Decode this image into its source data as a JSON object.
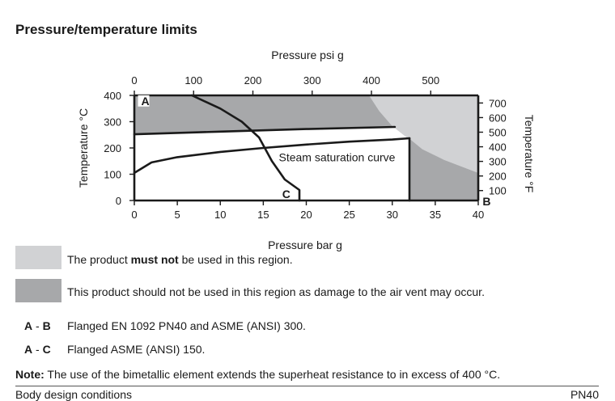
{
  "page": {
    "title": "Pressure/temperature limits"
  },
  "chart_data": {
    "type": "area",
    "x_bottom": {
      "label": "Pressure bar g",
      "range": [
        0,
        40
      ],
      "ticks": [
        0,
        5,
        10,
        15,
        20,
        25,
        30,
        35,
        40
      ]
    },
    "x_top": {
      "label": "Pressure psi g",
      "ticks": [
        0,
        100,
        200,
        300,
        400,
        500
      ]
    },
    "y_left": {
      "label": "Temperature °C",
      "range": [
        0,
        400
      ],
      "ticks": [
        0,
        100,
        200,
        300,
        400
      ]
    },
    "y_right": {
      "label": "Temperature °F",
      "ticks": [
        100,
        200,
        300,
        400,
        500,
        600,
        700
      ]
    },
    "regions": [
      {
        "key": "must_not",
        "color": "#d1d2d4",
        "points": [
          [
            27.3,
            400
          ],
          [
            40,
            400
          ],
          [
            40,
            105
          ],
          [
            34,
            180
          ],
          [
            30,
            283
          ],
          [
            28.5,
            340
          ]
        ]
      },
      {
        "key": "should_not",
        "color": "#a7a8aa",
        "points_upper": [
          [
            0,
            400
          ],
          [
            27.3,
            400
          ],
          [
            28.5,
            340
          ],
          [
            30,
            283
          ],
          [
            30.2,
            280
          ],
          [
            0,
            252
          ]
        ],
        "points_lower": [
          [
            32,
            235
          ],
          [
            33.5,
            195
          ],
          [
            36,
            155
          ],
          [
            40,
            105
          ],
          [
            40,
            0
          ],
          [
            32,
            0
          ]
        ]
      }
    ],
    "curves": [
      {
        "name": "Steam saturation curve",
        "points": [
          [
            0,
            105
          ],
          [
            2,
            145
          ],
          [
            5,
            165
          ],
          [
            10,
            185
          ],
          [
            15,
            200
          ],
          [
            20,
            213
          ],
          [
            25,
            224
          ],
          [
            30,
            232
          ],
          [
            32,
            237
          ]
        ]
      },
      {
        "name": "limit_AB_upper",
        "points": [
          [
            0,
            252
          ],
          [
            10,
            262
          ],
          [
            20,
            272
          ],
          [
            30.3,
            280
          ]
        ]
      },
      {
        "name": "limit_AC",
        "points": [
          [
            6.7,
            400
          ],
          [
            10,
            350
          ],
          [
            12.5,
            300
          ],
          [
            14.5,
            240
          ],
          [
            16,
            150
          ],
          [
            17.5,
            80
          ],
          [
            19.2,
            40
          ],
          [
            19.2,
            0
          ]
        ]
      },
      {
        "name": "body_limit_vertical",
        "points": [
          [
            32,
            237
          ],
          [
            32,
            0
          ]
        ]
      }
    ],
    "point_labels": [
      {
        "text": "A",
        "x": 0.8,
        "y": 370
      },
      {
        "text": "B",
        "x": 40.5,
        "y": 0
      },
      {
        "text": "C",
        "x": 17.2,
        "y": 15
      }
    ],
    "annotation": {
      "text": "Steam saturation curve",
      "x": 16.8,
      "y": 165
    }
  },
  "legend": {
    "light": {
      "color": "#d1d2d4",
      "text_before": "The product ",
      "text_bold": "must not",
      "text_after": " be used in this region."
    },
    "dark": {
      "color": "#a7a8aa",
      "text": "This product should not be used in this region as damage to the air vent may occur."
    }
  },
  "connections": [
    {
      "from": "A",
      "to": "B",
      "text": "Flanged EN 1092 PN40 and ASME (ANSI) 300."
    },
    {
      "from": "A",
      "to": "C",
      "text": "Flanged ASME (ANSI) 150."
    }
  ],
  "note": {
    "label": "Note:",
    "text": " The use of the bimetallic element extends the superheat resistance to in excess of 400 °C."
  },
  "footer": {
    "left": "Body design conditions",
    "right": "PN40"
  }
}
